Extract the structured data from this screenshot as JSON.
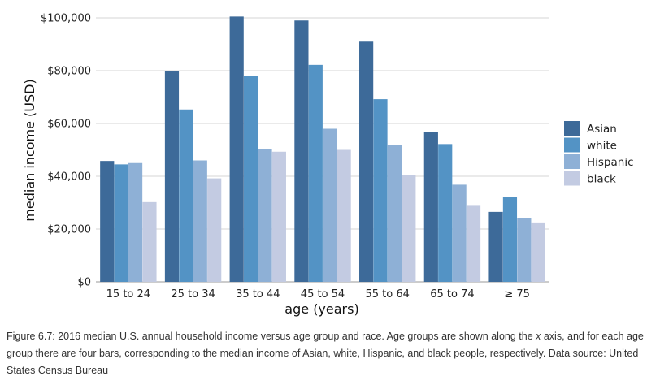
{
  "chart_data": {
    "type": "bar",
    "categories": [
      "15 to 24",
      "25 to 34",
      "35 to 44",
      "45 to 54",
      "55 to 64",
      "65 to 74",
      "≥ 75"
    ],
    "series": [
      {
        "name": "Asian",
        "color": "#3d6a99",
        "values": [
          45800,
          80000,
          100500,
          99000,
          91000,
          56700,
          26500
        ]
      },
      {
        "name": "white",
        "color": "#5393c5",
        "values": [
          44500,
          65300,
          78000,
          82200,
          69200,
          52200,
          32200
        ]
      },
      {
        "name": "Hispanic",
        "color": "#8eb0d6",
        "values": [
          45000,
          46000,
          50200,
          58000,
          52000,
          36800,
          24000
        ]
      },
      {
        "name": "black",
        "color": "#c3cbe2",
        "values": [
          30200,
          39200,
          49300,
          50000,
          40500,
          28800,
          22500
        ]
      }
    ],
    "xlabel": "age (years)",
    "ylabel": "median income (USD)",
    "ylim": [
      0,
      100000
    ],
    "yticks": [
      0,
      20000,
      40000,
      60000,
      80000,
      100000
    ],
    "ytick_labels": [
      "$0",
      "$20,000",
      "$40,000",
      "$60,000",
      "$80,000",
      "$100,000"
    ],
    "grid": "horizontal",
    "legend_position": "right"
  },
  "caption": {
    "prefix": "Figure 6.7: 2016 median U.S. annual household income versus age group and race. Age groups are shown along the ",
    "axis_var": "x",
    "suffix": " axis, and for each age group there are four bars, corresponding to the median income of Asian, white, Hispanic, and black people, respectively. Data source: United States Census Bureau"
  }
}
